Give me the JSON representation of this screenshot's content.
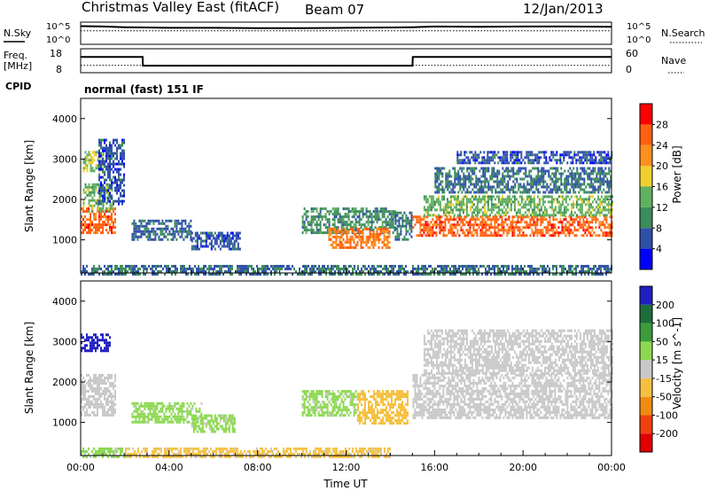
{
  "header": {
    "station": "Christmas Valley East (fitACF)",
    "beam": "Beam 07",
    "date": "12/Jan/2013"
  },
  "small_panels": {
    "nsky_label": "N.Sky",
    "nsearch_label": "N.Search",
    "nsky_ticks": [
      "10^5",
      "10^0"
    ],
    "nsearch_ticks": [
      "10^5",
      "10^0"
    ],
    "freq_label_1": "Freq.",
    "freq_label_2": "[MHz]",
    "freq_ticks": [
      "18",
      "8"
    ],
    "nave_label": "Nave",
    "nave_ticks": [
      "60",
      "0"
    ],
    "cpid_label": "CPID",
    "cpid_value": "normal (fast) 151 IF"
  },
  "colors": {
    "power": [
      "#0000ff",
      "#2e4fa8",
      "#3c8c5a",
      "#60b060",
      "#f0d030",
      "#ff9020",
      "#ff6010",
      "#ff0000"
    ],
    "velocity": [
      "#2020c0",
      "#1e6e3c",
      "#3c9c3c",
      "#8cd850",
      "#c8c8c8",
      "#f5c040",
      "#f08c10",
      "#f04010",
      "#e00000"
    ]
  },
  "chart_data": [
    {
      "type": "line",
      "title": "N.Sky / N.Search",
      "x": [
        "00:00",
        "01:00",
        "02:00",
        "03:00",
        "04:00",
        "06:00",
        "08:00",
        "10:00",
        "12:00",
        "14:00",
        "15:00",
        "16:00",
        "18:00",
        "20:00",
        "22:00",
        "24:00"
      ],
      "series": [
        {
          "name": "N.Sky",
          "values": [
            4.6,
            4.5,
            4.3,
            4.2,
            4.1,
            4.1,
            4.0,
            4.0,
            4.1,
            4.2,
            4.3,
            4.5,
            4.4,
            4.5,
            4.5,
            4.4
          ]
        },
        {
          "name": "N.Search",
          "values": [
            3.2,
            3.2,
            3.2,
            3.2,
            3.2,
            3.2,
            3.2,
            3.2,
            3.2,
            3.2,
            3.2,
            3.2,
            3.2,
            3.2,
            3.2,
            3.2
          ]
        }
      ],
      "ylim": [
        0,
        5
      ],
      "yscale": "log"
    },
    {
      "type": "line",
      "title": "Freq. / Nave",
      "x": [
        "00:00",
        "02:48",
        "02:49",
        "15:00",
        "15:01",
        "24:00"
      ],
      "series": [
        {
          "name": "Freq. [MHz]",
          "values": [
            15.5,
            15.5,
            10.8,
            10.8,
            15.5,
            15.5
          ]
        },
        {
          "name": "Nave",
          "values": [
            18,
            18,
            18,
            18,
            18,
            18
          ]
        }
      ],
      "ylim": [
        8,
        18
      ],
      "y2lim": [
        0,
        60
      ]
    },
    {
      "type": "heatmap",
      "title": "Power [dB]",
      "xlabel": "",
      "ylabel": "Slant Range [km]",
      "xlim": [
        0,
        24
      ],
      "ylim": [
        180,
        4500
      ],
      "x_ticks": [],
      "y_ticks": [
        "1000",
        "2000",
        "3000",
        "4000"
      ],
      "colorbar": {
        "label": "Power [dB]",
        "ticks": [
          "4",
          "8",
          "12",
          "16",
          "20",
          "24",
          "28"
        ],
        "range": [
          0,
          32
        ]
      },
      "regions": [
        {
          "t_start": 0.0,
          "t_end": 1.6,
          "r_low": 1200,
          "r_high": 1800,
          "level": 26
        },
        {
          "t_start": 0.1,
          "t_end": 1.4,
          "r_low": 1700,
          "r_high": 2400,
          "level": 14
        },
        {
          "t_start": 0.1,
          "t_end": 1.0,
          "r_low": 2700,
          "r_high": 3200,
          "level": 16
        },
        {
          "t_start": 0.8,
          "t_end": 2.0,
          "r_low": 1900,
          "r_high": 3500,
          "level": 6
        },
        {
          "t_start": 2.3,
          "t_end": 5.0,
          "r_low": 1000,
          "r_high": 1500,
          "level": 7
        },
        {
          "t_start": 5.0,
          "t_end": 7.2,
          "r_low": 800,
          "r_high": 1200,
          "level": 6
        },
        {
          "t_start": 10.0,
          "t_end": 14.2,
          "r_low": 1200,
          "r_high": 1800,
          "level": 10
        },
        {
          "t_start": 11.2,
          "t_end": 14.0,
          "r_low": 800,
          "r_high": 1300,
          "level": 24
        },
        {
          "t_start": 14.2,
          "t_end": 15.0,
          "r_low": 1000,
          "r_high": 1700,
          "level": 8
        },
        {
          "t_start": 15.0,
          "t_end": 24.0,
          "r_low": 1100,
          "r_high": 1600,
          "level": 26
        },
        {
          "t_start": 15.5,
          "t_end": 24.0,
          "r_low": 1600,
          "r_high": 2100,
          "level": 14
        },
        {
          "t_start": 16.0,
          "t_end": 24.0,
          "r_low": 2200,
          "r_high": 2800,
          "level": 8
        },
        {
          "t_start": 17.0,
          "t_end": 24.0,
          "r_low": 2900,
          "r_high": 3200,
          "level": 6
        },
        {
          "t_start": 0.0,
          "t_end": 24.0,
          "r_low": 180,
          "r_high": 380,
          "level": 8
        }
      ]
    },
    {
      "type": "heatmap",
      "title": "Velocity [m s^-1]",
      "xlabel": "Time UT",
      "ylabel": "Slant Range [km]",
      "xlim": [
        0,
        24
      ],
      "ylim": [
        180,
        4500
      ],
      "x_ticks": [
        "00:00",
        "04:00",
        "08:00",
        "12:00",
        "16:00",
        "20:00",
        "00:00"
      ],
      "y_ticks": [
        "1000",
        "2000",
        "3000",
        "4000"
      ],
      "colorbar": {
        "label": "Velocity [m s^-1]",
        "ticks": [
          "200",
          "100",
          "50",
          "15",
          "-15",
          "-50",
          "-100",
          "-200"
        ],
        "range": [
          -250,
          250
        ]
      },
      "regions": [
        {
          "t_start": 0.0,
          "t_end": 1.3,
          "r_low": 2800,
          "r_high": 3200,
          "level": 220
        },
        {
          "t_start": 0.0,
          "t_end": 1.6,
          "r_low": 1200,
          "r_high": 2200,
          "level": 0
        },
        {
          "t_start": 2.3,
          "t_end": 5.5,
          "r_low": 1000,
          "r_high": 1500,
          "level": 40
        },
        {
          "t_start": 5.0,
          "t_end": 7.0,
          "r_low": 800,
          "r_high": 1200,
          "level": 40
        },
        {
          "t_start": 10.0,
          "t_end": 12.5,
          "r_low": 1200,
          "r_high": 1800,
          "level": 40
        },
        {
          "t_start": 12.5,
          "t_end": 14.8,
          "r_low": 950,
          "r_high": 1800,
          "level": -60
        },
        {
          "t_start": 15.0,
          "t_end": 24.0,
          "r_low": 1100,
          "r_high": 2200,
          "level": 0
        },
        {
          "t_start": 15.5,
          "t_end": 24.0,
          "r_low": 2200,
          "r_high": 3300,
          "level": 0
        },
        {
          "t_start": 2.0,
          "t_end": 14.0,
          "r_low": 180,
          "r_high": 380,
          "level": -40
        },
        {
          "t_start": 0.0,
          "t_end": 2.0,
          "r_low": 180,
          "r_high": 380,
          "level": 40
        }
      ]
    }
  ]
}
